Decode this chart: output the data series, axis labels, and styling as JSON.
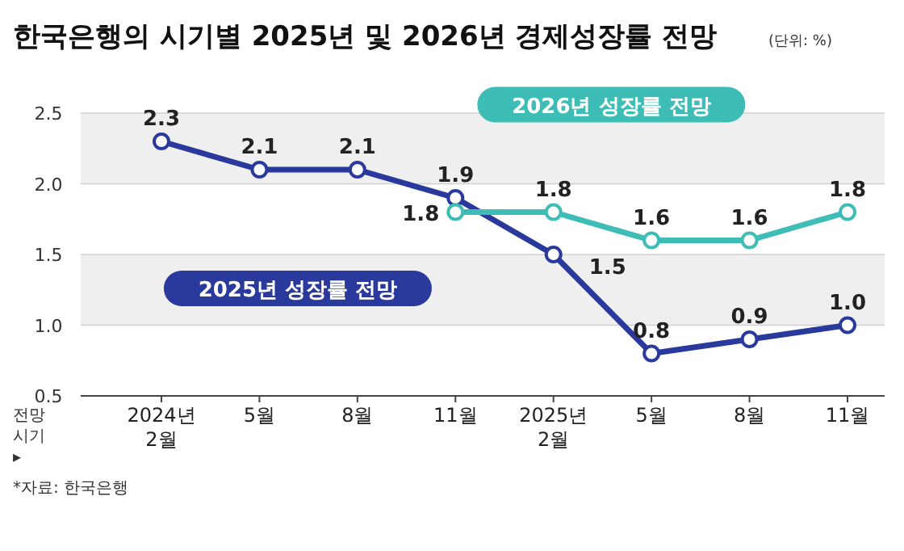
{
  "chart_data": {
    "type": "line",
    "title": "한국은행의 시기별 2025년 및 2026년 경제성장률 전망",
    "subtitle": "(단위: %)",
    "xlabel": "전망 시기 ▸",
    "categories": [
      "2024년 2월",
      "5월",
      "8월",
      "11월",
      "2025년 2월",
      "5월",
      "8월",
      "11월"
    ],
    "series": [
      {
        "name": "2025년 성장률 전망",
        "color": "#2a3a9c",
        "values": [
          2.3,
          2.1,
          2.1,
          1.9,
          1.5,
          0.8,
          0.9,
          1.0
        ],
        "value_labels": [
          "2.3",
          "2.1",
          "2.1",
          "1.9",
          "1.5",
          "0.8",
          "0.9",
          "1.0"
        ]
      },
      {
        "name": "2026년 성장률 전망",
        "color": "#3dbdb5",
        "values": [
          null,
          null,
          null,
          1.8,
          1.8,
          1.6,
          1.6,
          1.8
        ],
        "value_labels": [
          null,
          null,
          null,
          "1.8",
          "1.8",
          "1.6",
          "1.6",
          "1.8"
        ]
      }
    ],
    "ylim": [
      0.5,
      2.5
    ],
    "yticks": [
      {
        "value": 0.5,
        "label": "0.5"
      },
      {
        "value": 1,
        "label": "1.0"
      },
      {
        "value": 1.5,
        "label": "1.5"
      },
      {
        "value": 2,
        "label": "2.0"
      },
      {
        "value": 2.5,
        "label": "2.5"
      }
    ],
    "bands": [
      {
        "axis": "y",
        "from": 2,
        "to": 2.5,
        "color": "#efefef"
      },
      {
        "axis": "y",
        "from": 1,
        "to": 1.5,
        "color": "#efefef"
      }
    ],
    "grid": "y",
    "marker": "circle",
    "line_style": "solid",
    "legend": false,
    "annotations": [
      "*자료: 한국은행"
    ]
  }
}
